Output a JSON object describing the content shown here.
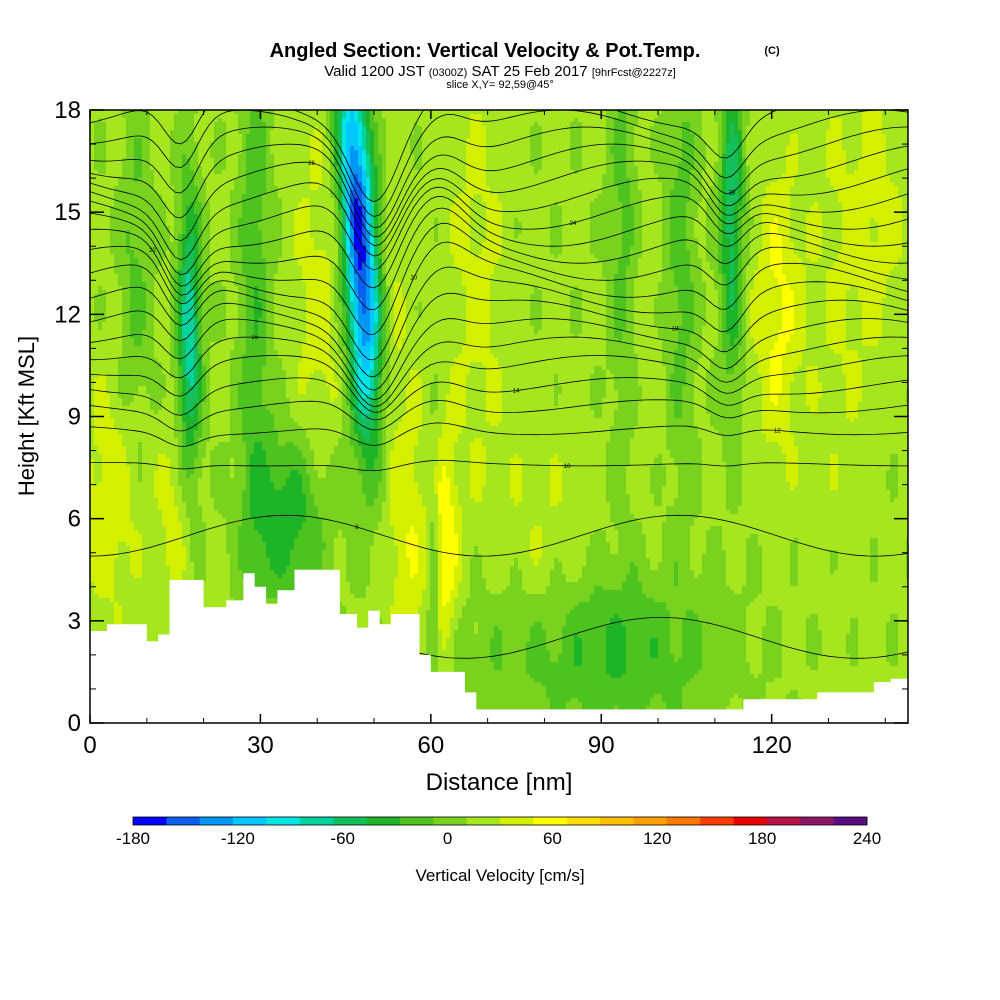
{
  "chart_data": {
    "type": "heatmap",
    "title": "Angled Section: Vertical Velocity & Pot.Temp.",
    "title_mark": "(C)",
    "subtitle_prefix": "Valid 1200 JST",
    "subtitle_utc": "(0300Z)",
    "subtitle_date": "SAT 25 Feb 2017",
    "subtitle_fcst": "[9hrFcst@2227z]",
    "slice_label": "slice X,Y= 92,59@45°",
    "xlabel": "Distance [nm]",
    "ylabel": "Height [Kft MSL]",
    "xlim": [
      0,
      144
    ],
    "ylim": [
      0,
      18
    ],
    "x_ticks": [
      0,
      30,
      60,
      90,
      120
    ],
    "y_ticks": [
      0,
      3,
      6,
      9,
      12,
      15,
      18
    ],
    "colorbar": {
      "label": "Vertical Velocity [cm/s]",
      "min": -180,
      "max": 240,
      "step": 20,
      "tick_values": [
        -180,
        -120,
        -60,
        0,
        60,
        120,
        180,
        240
      ],
      "colors": [
        "#0000ff",
        "#0a5ff0",
        "#0096f5",
        "#00c8ff",
        "#00e6e6",
        "#00d2a0",
        "#14be5a",
        "#1eb428",
        "#4cc31e",
        "#78d21e",
        "#a5e61e",
        "#d2f000",
        "#ffff00",
        "#ffdd00",
        "#ffc000",
        "#ffa000",
        "#ff7800",
        "#ff3c00",
        "#e60000",
        "#b41446",
        "#8c1464",
        "#5a0a82"
      ]
    },
    "terrain_kft": [
      [
        0,
        2.7
      ],
      [
        3,
        2.9
      ],
      [
        8,
        2.9
      ],
      [
        10,
        2.4
      ],
      [
        12,
        2.6
      ],
      [
        14,
        4.2
      ],
      [
        18,
        4.2
      ],
      [
        20,
        3.4
      ],
      [
        24,
        3.6
      ],
      [
        27,
        4.4
      ],
      [
        29,
        4.0
      ],
      [
        31,
        3.5
      ],
      [
        33,
        3.9
      ],
      [
        36,
        4.5
      ],
      [
        41,
        4.5
      ],
      [
        44,
        3.2
      ],
      [
        47,
        2.8
      ],
      [
        49,
        3.3
      ],
      [
        51,
        2.9
      ],
      [
        53,
        3.2
      ],
      [
        57,
        3.2
      ],
      [
        58,
        2.0
      ],
      [
        60,
        1.5
      ],
      [
        63,
        1.5
      ],
      [
        66,
        0.9
      ],
      [
        68,
        0.4
      ],
      [
        114,
        0.4
      ],
      [
        115,
        0.7
      ],
      [
        120,
        0.7
      ],
      [
        128,
        0.9
      ],
      [
        138,
        1.2
      ],
      [
        141,
        1.3
      ],
      [
        144,
        1.3
      ]
    ],
    "theta_contours": [
      {
        "h0": 2.5,
        "label": "6"
      },
      {
        "h0": 5.5,
        "label": "8"
      },
      {
        "h0": 7.6,
        "label": "10"
      },
      {
        "h0": 8.6,
        "label": "12"
      },
      {
        "h0": 9.3
      },
      {
        "h0": 9.9,
        "label": "14"
      },
      {
        "h0": 10.5
      },
      {
        "h0": 11.0,
        "label": "16"
      },
      {
        "h0": 11.5
      },
      {
        "h0": 12.0,
        "label": "18"
      },
      {
        "h0": 12.5
      },
      {
        "h0": 13.0,
        "label": "20"
      },
      {
        "h0": 13.5
      },
      {
        "h0": 14.0,
        "label": "22"
      },
      {
        "h0": 14.5
      },
      {
        "h0": 15.0,
        "label": "24"
      },
      {
        "h0": 15.5
      },
      {
        "h0": 16.0,
        "label": "26"
      },
      {
        "h0": 16.5
      },
      {
        "h0": 17.0,
        "label": "28"
      },
      {
        "h0": 17.5
      },
      {
        "h0": 18.0,
        "label": "30"
      }
    ]
  }
}
